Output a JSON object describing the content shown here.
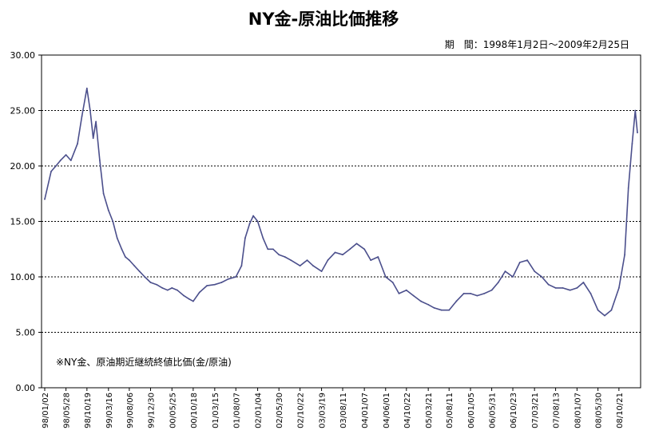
{
  "chart_data": {
    "type": "line",
    "title": "NY金-原油比価推移",
    "period_label": "期　間：1998年1月2日～2009年2月25日",
    "note": "※NY金、原油期近継続終値比価(金/原油)",
    "xlabel": "",
    "ylabel": "",
    "ylim": [
      0,
      30
    ],
    "yticks": [
      "0.00",
      "5.00",
      "10.00",
      "15.00",
      "20.00",
      "25.00",
      "30.00"
    ],
    "grid": "horizontal-dotted",
    "line_color": "#4b4f8c",
    "xticks": [
      "98/01/02",
      "98/05/28",
      "98/10/19",
      "99/03/16",
      "99/08/06",
      "99/12/30",
      "00/05/25",
      "00/10/18",
      "01/03/15",
      "01/08/07",
      "02/01/04",
      "02/05/30",
      "02/10/22",
      "03/03/19",
      "03/08/11",
      "04/01/07",
      "04/06/01",
      "04/10/22",
      "05/03/21",
      "05/08/11",
      "06/01/05",
      "06/05/31",
      "06/10/23",
      "07/03/21",
      "07/08/13",
      "08/01/07",
      "08/05/30",
      "08/10/21"
    ],
    "x": [
      "98/01/02",
      "98/02/15",
      "98/03/20",
      "98/04/20",
      "98/05/28",
      "98/07/01",
      "98/08/15",
      "98/09/15",
      "98/10/19",
      "98/11/10",
      "98/12/01",
      "98/12/20",
      "99/01/15",
      "99/02/10",
      "99/03/16",
      "99/04/15",
      "99/05/15",
      "99/06/15",
      "99/07/10",
      "99/08/06",
      "99/09/10",
      "99/10/15",
      "99/11/20",
      "99/12/30",
      "00/02/10",
      "00/03/20",
      "00/04/25",
      "00/05/25",
      "00/07/01",
      "00/08/15",
      "00/09/20",
      "00/10/18",
      "00/11/30",
      "01/01/20",
      "01/03/15",
      "01/05/01",
      "01/06/15",
      "01/08/07",
      "01/09/15",
      "01/10/10",
      "01/11/10",
      "01/12/05",
      "02/01/04",
      "02/02/10",
      "02/03/15",
      "02/04/20",
      "02/05/30",
      "02/07/10",
      "02/08/20",
      "02/10/22",
      "02/12/10",
      "03/01/20",
      "03/03/19",
      "03/05/01",
      "03/06/20",
      "03/08/11",
      "03/09/30",
      "03/11/15",
      "04/01/07",
      "04/02/20",
      "04/04/10",
      "04/06/01",
      "04/07/20",
      "04/09/01",
      "04/10/22",
      "04/12/10",
      "05/01/30",
      "05/03/21",
      "05/05/01",
      "05/06/20",
      "05/08/11",
      "05/09/30",
      "05/11/20",
      "06/01/05",
      "06/02/20",
      "06/04/10",
      "06/05/31",
      "06/07/15",
      "06/09/01",
      "06/10/23",
      "06/12/10",
      "07/01/30",
      "07/03/21",
      "07/05/10",
      "07/06/25",
      "07/08/13",
      "07/10/01",
      "07/11/20",
      "08/01/07",
      "08/02/20",
      "08/04/10",
      "08/05/30",
      "08/07/15",
      "08/08/30",
      "08/10/21",
      "08/11/30",
      "08/12/25",
      "09/01/20",
      "09/02/10",
      "09/02/25"
    ],
    "series": [
      {
        "values": [
          17.0,
          19.5,
          20.0,
          20.5,
          21.0,
          20.5,
          22.0,
          24.5,
          27.0,
          25.0,
          22.5,
          24.0,
          20.5,
          17.5,
          16.0,
          15.0,
          13.5,
          12.5,
          11.8,
          11.5,
          11.0,
          10.5,
          10.0,
          9.5,
          9.3,
          9.0,
          8.8,
          9.0,
          8.8,
          8.3,
          8.0,
          7.8,
          8.6,
          9.2,
          9.3,
          9.5,
          9.8,
          10.0,
          11.0,
          13.5,
          14.8,
          15.5,
          15.0,
          13.5,
          12.5,
          12.5,
          12.0,
          11.8,
          11.5,
          11.0,
          11.5,
          11.0,
          10.5,
          11.5,
          12.2,
          12.0,
          12.5,
          13.0,
          12.5,
          11.5,
          11.8,
          10.0,
          9.5,
          8.5,
          8.8,
          8.3,
          7.8,
          7.5,
          7.2,
          7.0,
          7.0,
          7.8,
          8.5,
          8.5,
          8.3,
          8.5,
          8.8,
          9.5,
          10.5,
          10.0,
          11.3,
          11.5,
          10.5,
          10.0,
          9.3,
          9.0,
          9.0,
          8.8,
          9.0,
          9.5,
          8.5,
          7.0,
          6.5,
          7.0,
          9.0,
          12.0,
          18.0,
          22.0,
          25.0,
          23.0
        ]
      }
    ]
  }
}
